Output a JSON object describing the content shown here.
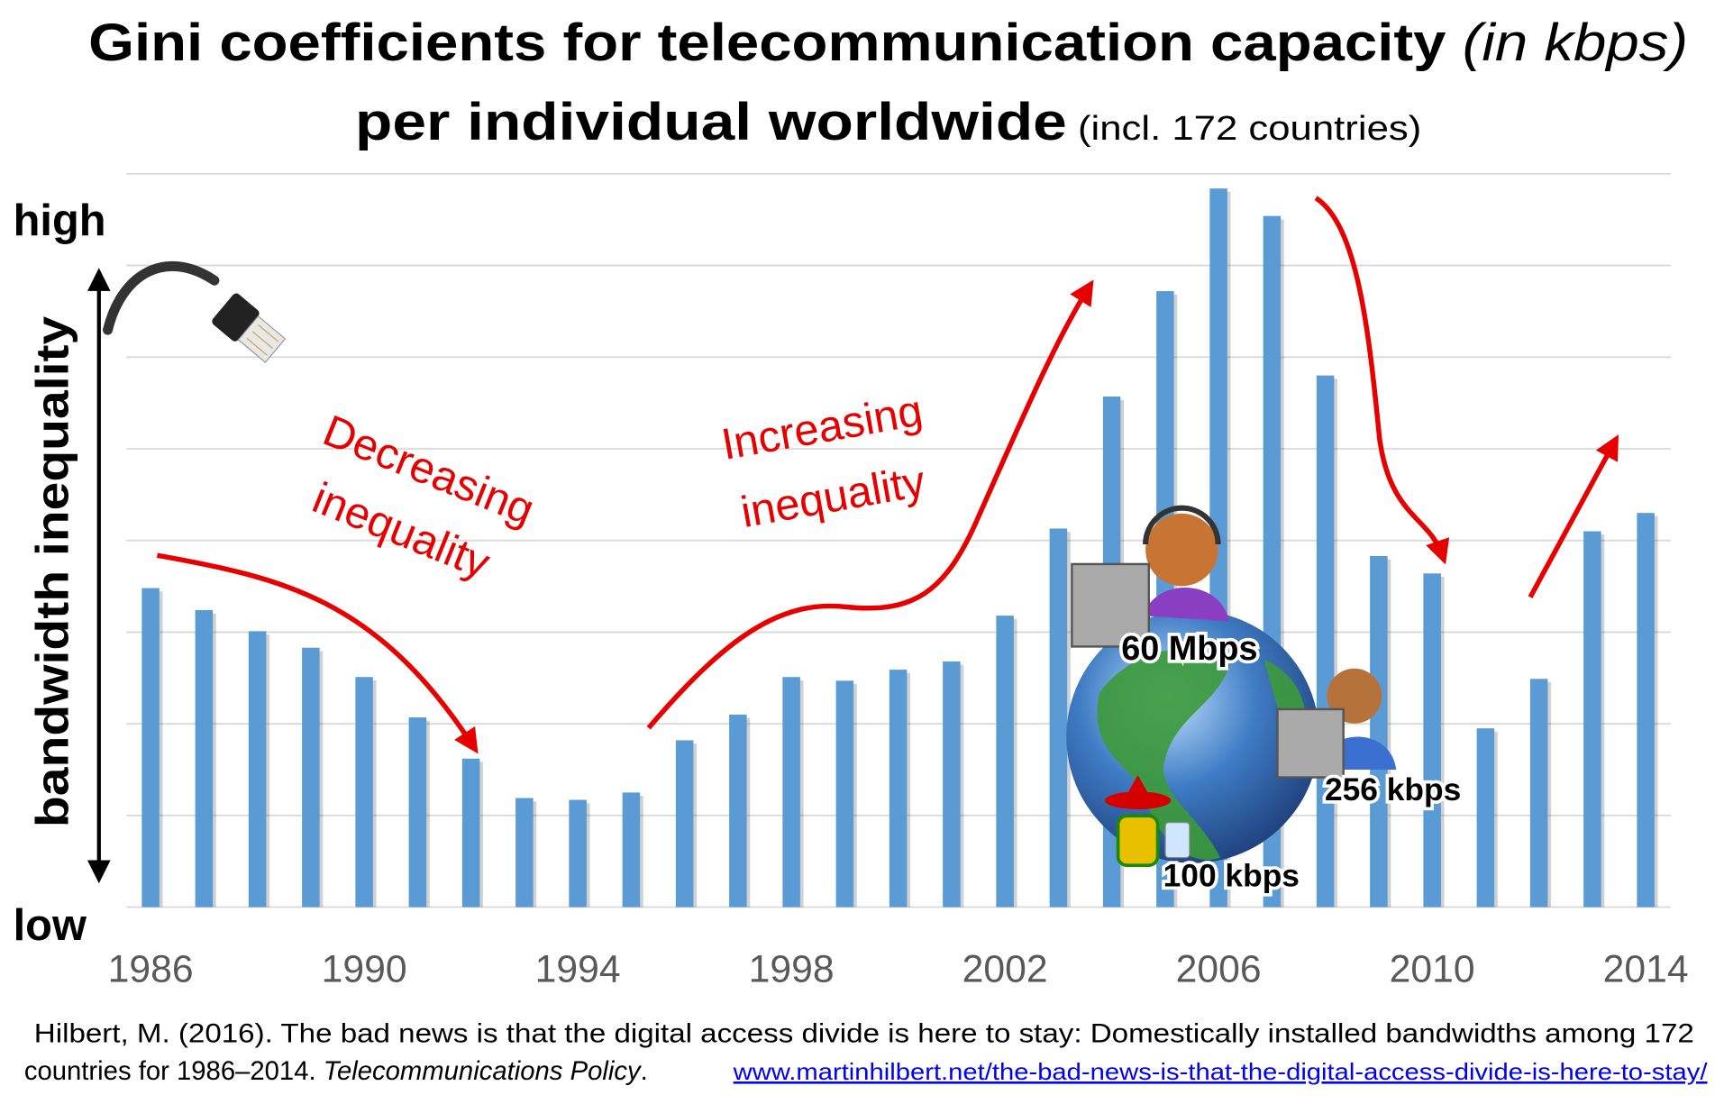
{
  "title": {
    "line1_main": "Gini coefficients for telecommunication capacity ",
    "line1_italic": "(in kbps)",
    "line2_main": "per individual worldwide",
    "line2_note": " (incl. 172 countries)"
  },
  "y_axis": {
    "label": "bandwidth inequality",
    "high": "high",
    "low": "low"
  },
  "annotations": {
    "decreasing_1": "Decreasing",
    "decreasing_2": "inequality",
    "increasing_1": "Increasing",
    "increasing_2": "inequality",
    "speed_high": "60 Mbps",
    "speed_mid": "256 kbps",
    "speed_low": "100 kbps"
  },
  "citation": {
    "line1": "Hilbert, M. (2016). The bad news is that the digital access divide is here to stay: Domestically installed bandwidths among 172",
    "line2_start": "countries for 1986–2014. ",
    "journal": "Telecommunications Policy",
    "sep": ". ",
    "link": "www.martinhilbert.net/the-bad-news-is-that-the-digital-access-divide-is-here-to-stay/"
  },
  "colors": {
    "bar": "#5b9bd5",
    "arrow": "#e60000",
    "grid": "#d9d9d9",
    "tick": "#595959",
    "link": "#0000ee"
  },
  "chart_data": {
    "type": "bar",
    "title": "Gini coefficients for telecommunication capacity (in kbps) per individual worldwide (incl. 172 countries)",
    "ylabel": "bandwidth inequality",
    "ylim": [
      0,
      8
    ],
    "grid": true,
    "x": [
      1986,
      1987,
      1988,
      1989,
      1990,
      1991,
      1992,
      1993,
      1994,
      1995,
      1996,
      1997,
      1998,
      1999,
      2000,
      2001,
      2002,
      2003,
      2004,
      2005,
      2006,
      2007,
      2008,
      2009,
      2010,
      2011,
      2012,
      2013,
      2014
    ],
    "values": [
      3.48,
      3.24,
      3.01,
      2.83,
      2.51,
      2.07,
      1.62,
      1.19,
      1.17,
      1.25,
      1.82,
      2.1,
      2.51,
      2.47,
      2.59,
      2.68,
      3.18,
      4.13,
      5.57,
      6.72,
      7.84,
      7.54,
      5.8,
      3.83,
      3.64,
      1.95,
      2.49,
      4.1,
      4.3
    ],
    "tick_labels": [
      "1986",
      "1990",
      "1994",
      "1998",
      "2002",
      "2006",
      "2010",
      "2014"
    ]
  }
}
